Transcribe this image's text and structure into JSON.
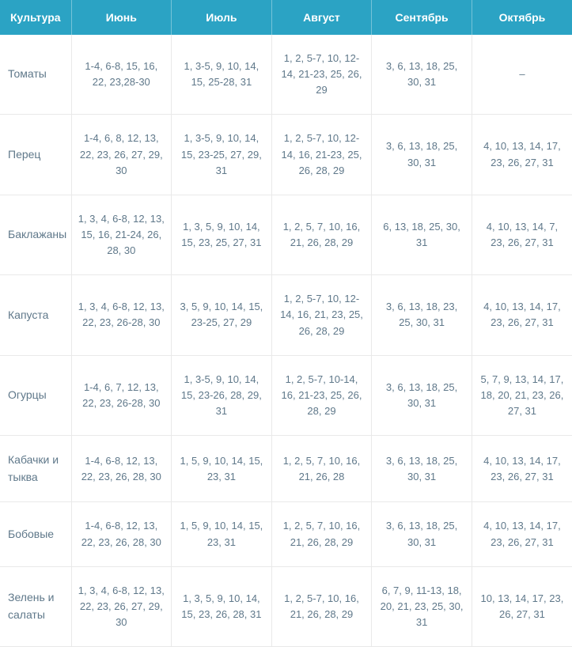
{
  "table": {
    "header_bg": "#2ba3c4",
    "header_text_color": "#ffffff",
    "cell_text_color": "#5f788a",
    "row_label_color": "#5f788a",
    "columns": [
      "Культура",
      "Июнь",
      "Июль",
      "Август",
      "Сентябрь",
      "Октябрь"
    ],
    "rows": [
      {
        "label": "Томаты",
        "cells": [
          "1-4, 6-8, 15, 16, 22, 23,28-30",
          "1, 3-5, 9, 10, 14, 15, 25-28, 31",
          "1, 2, 5-7, 10, 12-14, 21-23, 25, 26, 29",
          "3, 6, 13, 18, 25, 30, 31",
          "–"
        ]
      },
      {
        "label": "Перец",
        "cells": [
          "1-4, 6, 8, 12, 13, 22, 23, 26, 27, 29, 30",
          "1, 3-5, 9, 10, 14, 15, 23-25, 27, 29, 31",
          "1, 2, 5-7, 10, 12-14, 16, 21-23, 25, 26, 28, 29",
          "3, 6, 13, 18, 25, 30, 31",
          "4, 10, 13, 14, 17, 23, 26, 27, 31"
        ]
      },
      {
        "label": "Баклажаны",
        "cells": [
          "1, 3, 4, 6-8, 12, 13, 15, 16, 21-24, 26, 28, 30",
          "1, 3, 5, 9, 10, 14, 15, 23, 25, 27, 31",
          "1, 2, 5, 7, 10, 16, 21, 26, 28, 29",
          "6, 13, 18, 25, 30, 31",
          "4, 10, 13, 14, 7, 23, 26, 27, 31"
        ]
      },
      {
        "label": "Капуста",
        "cells": [
          "1, 3, 4, 6-8, 12, 13, 22, 23, 26-28, 30",
          "3, 5, 9, 10, 14, 15, 23-25, 27, 29",
          "1, 2, 5-7, 10, 12-14, 16, 21, 23, 25, 26, 28, 29",
          "3, 6, 13, 18, 23, 25, 30, 31",
          "4, 10, 13, 14, 17, 23, 26, 27, 31"
        ]
      },
      {
        "label": "Огурцы",
        "cells": [
          "1-4, 6, 7, 12, 13, 22, 23, 26-28, 30",
          "1, 3-5, 9, 10, 14, 15, 23-26, 28, 29, 31",
          "1, 2, 5-7, 10-14, 16, 21-23, 25, 26, 28, 29",
          "3, 6, 13, 18, 25, 30, 31",
          "5, 7, 9, 13, 14, 17, 18, 20, 21, 23, 26, 27, 31"
        ]
      },
      {
        "label": "Кабачки и тыква",
        "cells": [
          "1-4, 6-8, 12, 13, 22, 23, 26, 28, 30",
          "1, 5, 9, 10, 14, 15, 23, 31",
          "1, 2, 5, 7, 10, 16, 21, 26, 28",
          "3, 6, 13, 18, 25, 30, 31",
          "4, 10, 13, 14, 17, 23, 26, 27, 31"
        ]
      },
      {
        "label": "Бобовые",
        "cells": [
          "1-4, 6-8, 12, 13, 22, 23, 26, 28, 30",
          "1, 5, 9, 10, 14, 15, 23, 31",
          "1, 2, 5, 7, 10, 16, 21, 26, 28, 29",
          "3, 6, 13, 18, 25, 30, 31",
          "4, 10, 13, 14, 17, 23, 26, 27, 31"
        ]
      },
      {
        "label": "Зелень и салаты",
        "cells": [
          "1, 3, 4, 6-8, 12, 13, 22, 23, 26, 27, 29, 30",
          "1, 3, 5, 9, 10, 14, 15, 23, 26, 28, 31",
          "1, 2, 5-7, 10, 16, 21, 26, 28, 29",
          "6, 7, 9, 11-13, 18, 20, 21, 23, 25, 30, 31",
          "10, 13, 14, 17, 23, 26, 27, 31"
        ]
      }
    ]
  }
}
